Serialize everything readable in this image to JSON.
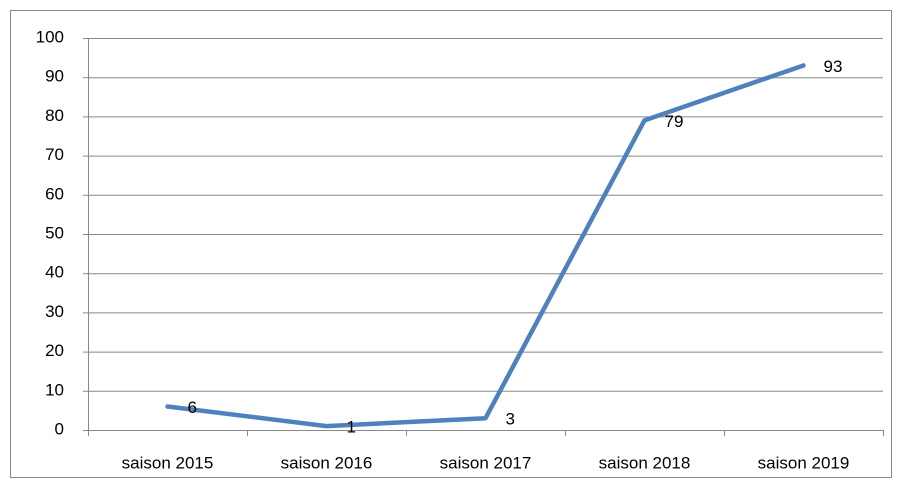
{
  "chart_data": {
    "type": "line",
    "categories": [
      "saison 2015",
      "saison 2016",
      "saison 2017",
      "saison 2018",
      "saison 2019"
    ],
    "values": [
      6,
      1,
      3,
      79,
      93
    ],
    "color": "#4f81bd",
    "ylim": [
      0,
      100
    ],
    "yticks": [
      0,
      10,
      20,
      30,
      40,
      50,
      60,
      70,
      80,
      90,
      100
    ],
    "grid": true,
    "data_labels": true
  }
}
